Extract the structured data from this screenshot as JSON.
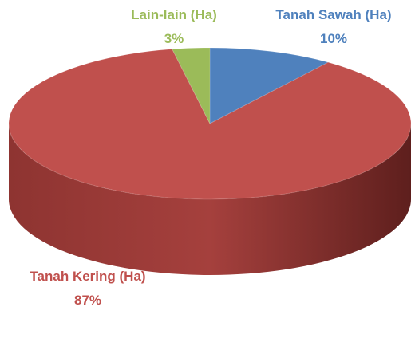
{
  "chart_data": {
    "type": "pie",
    "categories": [
      "Tanah Sawah (Ha)",
      "Tanah Kering (Ha)",
      "Lain-lain (Ha)"
    ],
    "values": [
      10,
      87,
      3
    ],
    "value_labels": [
      "10%",
      "87%",
      "3%"
    ],
    "colors": [
      "#4f81bd",
      "#c0504d",
      "#9bbb59"
    ]
  }
}
